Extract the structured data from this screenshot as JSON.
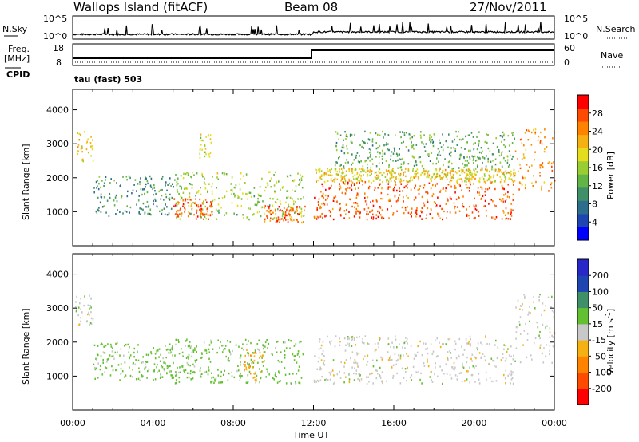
{
  "header": {
    "site": "Wallops Island (fitACF)",
    "beam": "Beam 08",
    "date": "27/Nov/2011"
  },
  "noise_panel": {
    "left_label": "N.Sky",
    "left_ticks": [
      "10^5",
      "10^0"
    ],
    "right_ticks": [
      "10^5",
      "10^0"
    ],
    "right_label": "N.Search"
  },
  "freq_panel": {
    "left_label_1": "Freq.",
    "left_label_2": "[MHz]",
    "left_ticks": [
      "18",
      "8"
    ],
    "right_ticks": [
      "60",
      "0"
    ],
    "right_label": "Nave",
    "cpid_label": "CPID",
    "cpid_text": "tau (fast) 503"
  },
  "chart_data": [
    {
      "type": "heatmap",
      "panel": "power",
      "ylabel": "Slant Range [km]",
      "xlabel": "",
      "ylim": [
        0,
        4600
      ],
      "y_ticks": [
        "1000",
        "2000",
        "3000",
        "4000"
      ],
      "colorbar": {
        "label": "Power [dB]",
        "ticks": [
          "28",
          "24",
          "20",
          "16",
          "12",
          "8",
          "4"
        ],
        "colors": [
          "#0000ff",
          "#1f45b0",
          "#2d6e8c",
          "#3f8f68",
          "#63b447",
          "#9acd32",
          "#e6dc1e",
          "#f5b014",
          "#ff8200",
          "#ff4b00",
          "#ff0000"
        ]
      },
      "regions": [
        {
          "t0": 0.1,
          "t1": 1.0,
          "r0": 2500,
          "r1": 3400,
          "db": 20
        },
        {
          "t0": 1.0,
          "t1": 5.0,
          "r0": 900,
          "r1": 2100,
          "db": 10
        },
        {
          "t0": 5.0,
          "t1": 11.5,
          "r0": 800,
          "r1": 2200,
          "db": 16
        },
        {
          "t0": 5.0,
          "t1": 7.0,
          "r0": 800,
          "r1": 1400,
          "db": 28
        },
        {
          "t0": 6.3,
          "t1": 6.9,
          "r0": 2600,
          "r1": 3300,
          "db": 18
        },
        {
          "t0": 9.5,
          "t1": 11.6,
          "r0": 700,
          "r1": 1200,
          "db": 27
        },
        {
          "t0": 12.0,
          "t1": 22.0,
          "r0": 800,
          "r1": 1900,
          "db": 28
        },
        {
          "t0": 12.0,
          "t1": 22.0,
          "r0": 1900,
          "r1": 2300,
          "db": 20
        },
        {
          "t0": 22.0,
          "t1": 24.0,
          "r0": 1600,
          "r1": 3500,
          "db": 25
        },
        {
          "t0": 13.0,
          "t1": 22.0,
          "r0": 2300,
          "r1": 3400,
          "db": 12
        }
      ]
    },
    {
      "type": "heatmap",
      "panel": "velocity",
      "ylabel": "Slant Range [km]",
      "xlabel": "Time UT",
      "ylim": [
        0,
        4600
      ],
      "y_ticks": [
        "1000",
        "2000",
        "3000",
        "4000"
      ],
      "x_ticks": [
        "00:00",
        "04:00",
        "08:00",
        "12:00",
        "16:00",
        "20:00",
        "00:00"
      ],
      "colorbar": {
        "label": "Velocity [m s-1]",
        "ticks": [
          "200",
          "100",
          "50",
          "15",
          "-15",
          "-50",
          "-100",
          "-200"
        ],
        "colors": [
          "#ff0000",
          "#ff4b00",
          "#ff8200",
          "#f5b014",
          "#c8c8c8",
          "#63c032",
          "#3f8f68",
          "#1f45b0",
          "#2828c8"
        ]
      },
      "regions": [
        {
          "t0": 0.1,
          "t1": 1.0,
          "r0": 2500,
          "r1": 3400,
          "v": 0
        },
        {
          "t0": 1.0,
          "t1": 5.0,
          "r0": 900,
          "r1": 2000,
          "v": 30
        },
        {
          "t0": 5.0,
          "t1": 11.5,
          "r0": 800,
          "r1": 2100,
          "v": 30
        },
        {
          "t0": 8.5,
          "t1": 9.5,
          "r0": 800,
          "r1": 1800,
          "v": -40
        },
        {
          "t0": 12.0,
          "t1": 22.0,
          "r0": 800,
          "r1": 2200,
          "v": 0
        },
        {
          "t0": 22.0,
          "t1": 24.0,
          "r0": 1400,
          "r1": 3500,
          "v": 0
        }
      ]
    }
  ]
}
